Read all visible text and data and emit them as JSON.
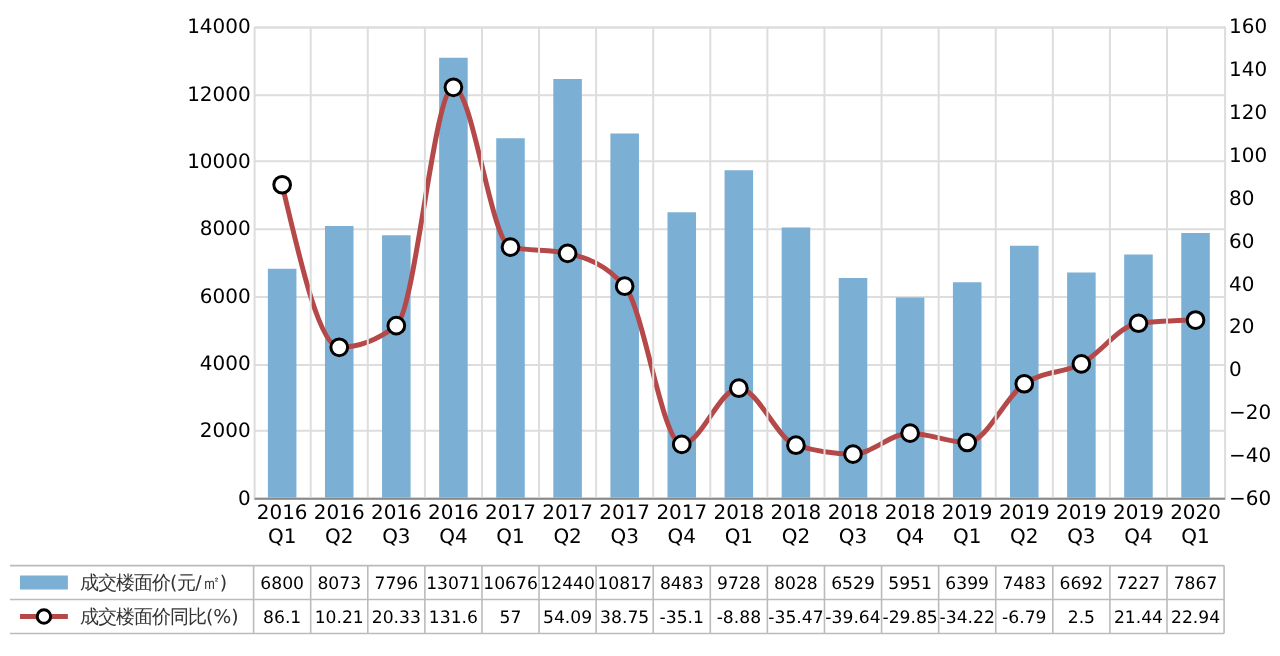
{
  "chart_data": {
    "type": "bar",
    "categories": [
      "2016 Q1",
      "2016 Q2",
      "2016 Q3",
      "2016 Q4",
      "2017 Q1",
      "2017 Q2",
      "2017 Q3",
      "2017 Q4",
      "2018 Q1",
      "2018 Q2",
      "2018 Q3",
      "2018 Q4",
      "2019 Q1",
      "2019 Q2",
      "2019 Q3",
      "2019 Q4",
      "2020 Q1"
    ],
    "series": [
      {
        "name": "成交楼面价(元/㎡)",
        "color": "#7bafd4",
        "values": [
          6800,
          8073,
          7796,
          13071,
          10676,
          12440,
          10817,
          8483,
          9728,
          8028,
          6529,
          5951,
          6399,
          7483,
          6692,
          7227,
          7867
        ]
      },
      {
        "name": "成交楼面价同比(%)",
        "type": "line",
        "axis": "y2",
        "color": "#b5494a",
        "marker": "circle",
        "values": [
          86.1,
          10.21,
          20.33,
          131.6,
          57,
          54.09,
          38.75,
          -35.1,
          -8.88,
          -35.47,
          -39.64,
          -29.85,
          -34.22,
          -6.79,
          2.5,
          21.44,
          22.94
        ]
      }
    ],
    "ylim": [
      0,
      14000
    ],
    "yticks": [
      0,
      2000,
      4000,
      6000,
      8000,
      10000,
      12000,
      14000
    ],
    "y2lim": [
      -60,
      160
    ],
    "y2ticks": [
      -60,
      -40,
      -20,
      0,
      20,
      40,
      60,
      80,
      100,
      120,
      140,
      160
    ],
    "grid": true,
    "legend": "bottom",
    "data_labels": true
  }
}
